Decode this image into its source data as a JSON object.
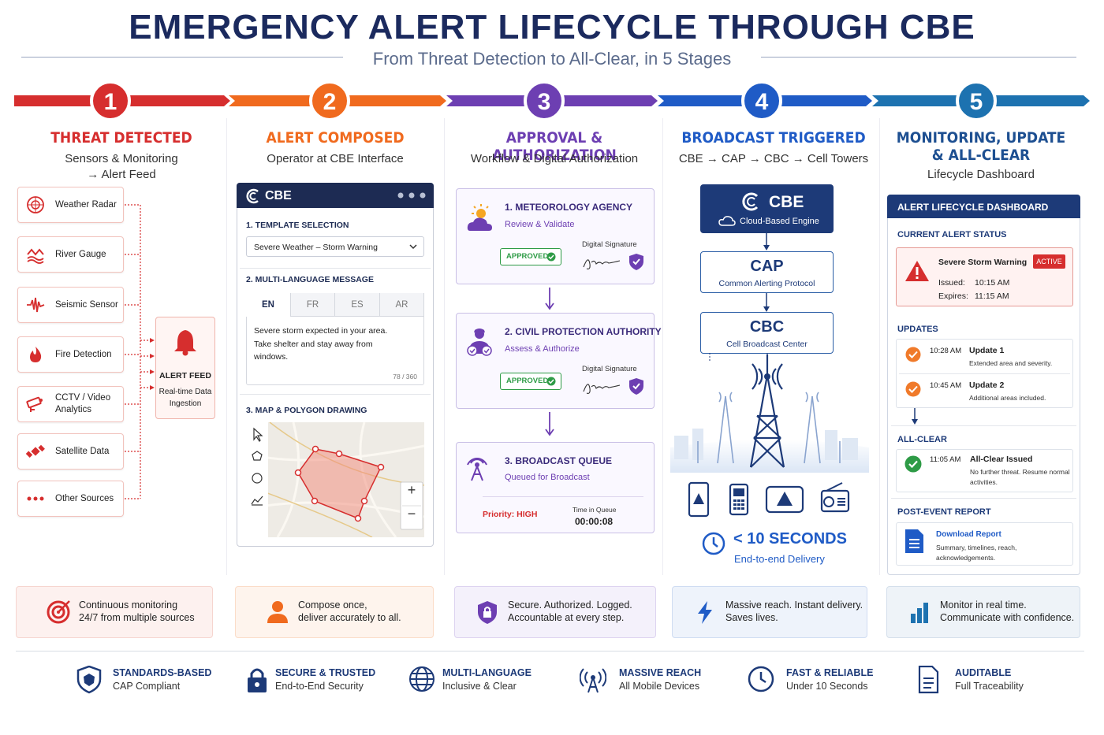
{
  "header": {
    "title": "EMERGENCY ALERT LIFECYCLE THROUGH CBE",
    "subtitle": "From Threat Detection to All-Clear, in 5 Stages"
  },
  "stages": [
    {
      "number": "1",
      "title": "THREAT DETECTED",
      "subtitle": "Sensors & Monitoring\n→ Alert Feed",
      "footer": "Continuous monitoring\n24/7 from multiple sources"
    },
    {
      "number": "2",
      "title": "ALERT COMPOSED",
      "subtitle": "Operator at CBE Interface",
      "footer": "Compose once,\ndeliver accurately to all."
    },
    {
      "number": "3",
      "title": "APPROVAL & AUTHORIZATION",
      "subtitle": "Workflow & Digital Authorization",
      "footer": "Secure. Authorized. Logged.\nAccountable at every step."
    },
    {
      "number": "4",
      "title": "BROADCAST TRIGGERED",
      "subtitle": "CBE → CAP → CBC → Cell Towers",
      "footer": "Massive reach. Instant delivery.\nSaves lives."
    },
    {
      "number": "5",
      "title": "MONITORING, UPDATE\n& ALL-CLEAR",
      "subtitle": "Lifecycle Dashboard",
      "footer": "Monitor in real time.\nCommunicate with confidence."
    }
  ],
  "detection": {
    "sources": [
      "Weather Radar",
      "River Gauge",
      "Seismic Sensor",
      "Fire Detection",
      "CCTV / Video\nAnalytics",
      "Satellite Data",
      "Other Sources"
    ],
    "feed_title": "ALERT FEED",
    "feed_subtitle": "Real-time Data\nIngestion"
  },
  "composer": {
    "brand": "CBE",
    "template_label": "1. TEMPLATE SELECTION",
    "template_value": "Severe Weather – Storm Warning",
    "message_label": "2. MULTI-LANGUAGE MESSAGE",
    "languages": [
      "EN",
      "FR",
      "ES",
      "AR"
    ],
    "message": "Severe storm expected in your area.\nTake shelter and stay away from\nwindows.",
    "counter": "78 / 360",
    "map_label": "3. MAP & POLYGON DRAWING",
    "zoom_in": "+",
    "zoom_out": "−"
  },
  "approval": {
    "steps": [
      {
        "title": "1. METEOROLOGY AGENCY",
        "subtitle": "Review & Validate",
        "signature": "Digital Signature",
        "status": "APPROVED"
      },
      {
        "title": "2. CIVIL PROTECTION AUTHORITY",
        "subtitle": "Assess & Authorize",
        "signature": "Digital Signature",
        "status": "APPROVED"
      }
    ],
    "queue": {
      "title": "3. BROADCAST QUEUE",
      "subtitle": "Queued for Broadcast",
      "priority": "Priority: HIGH",
      "time_label": "Time in Queue",
      "time": "00:00:08"
    }
  },
  "broadcast": {
    "nodes": [
      {
        "title": "CBE",
        "subtitle": "Cloud-Based Engine"
      },
      {
        "title": "CAP",
        "subtitle": "Common Alerting Protocol"
      },
      {
        "title": "CBC",
        "subtitle": "Cell Broadcast Center"
      }
    ],
    "speed": "< 10 SECONDS",
    "speed_note": "End-to-end Delivery"
  },
  "dashboard": {
    "title": "ALERT LIFECYCLE DASHBOARD",
    "status_label": "CURRENT ALERT STATUS",
    "alert": "Severe Storm Warning",
    "badge": "ACTIVE",
    "issued_label": "Issued:",
    "issued": "10:15 AM",
    "expires_label": "Expires:",
    "expires": "11:15 AM",
    "updates_label": "UPDATES",
    "updates": [
      {
        "time": "10:28 AM",
        "title": "Update 1",
        "text": "Extended area and severity."
      },
      {
        "time": "10:45 AM",
        "title": "Update 2",
        "text": "Additional areas included."
      }
    ],
    "allclear_label": "ALL-CLEAR",
    "allclear": {
      "time": "11:05 AM",
      "title": "All-Clear Issued",
      "text": "No further threat. Resume normal\nactivities."
    },
    "report_label": "POST-EVENT REPORT",
    "report": {
      "title": "Download Report",
      "text": "Summary, timelines, reach,\nacknowledgements."
    }
  },
  "features": [
    {
      "title": "STANDARDS-BASED",
      "subtitle": "CAP Compliant"
    },
    {
      "title": "SECURE & TRUSTED",
      "subtitle": "End-to-End Security"
    },
    {
      "title": "MULTI-LANGUAGE",
      "subtitle": "Inclusive & Clear"
    },
    {
      "title": "MASSIVE REACH",
      "subtitle": "All Mobile Devices"
    },
    {
      "title": "FAST & RELIABLE",
      "subtitle": "Under 10 Seconds"
    },
    {
      "title": "AUDITABLE",
      "subtitle": "Full Traceability"
    }
  ]
}
